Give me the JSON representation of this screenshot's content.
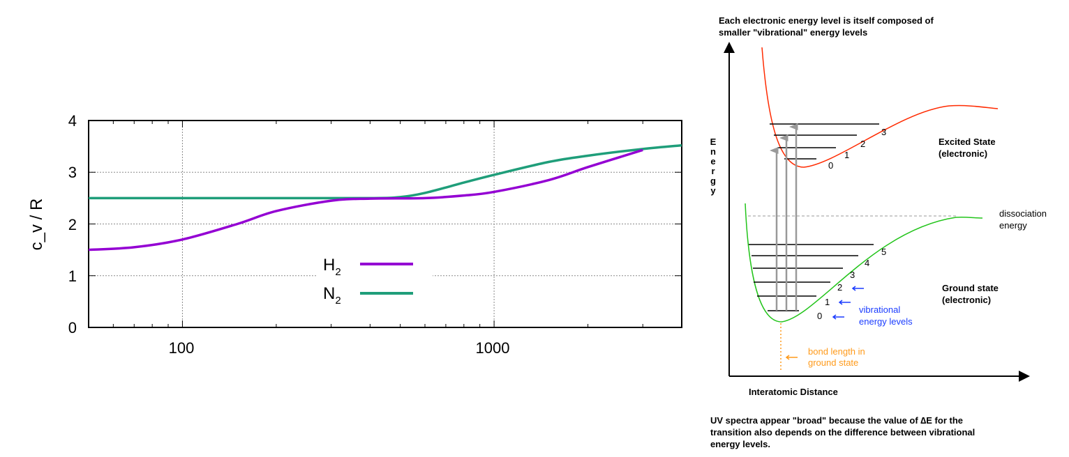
{
  "chart_data": {
    "type": "line",
    "title": "",
    "xlabel": "",
    "ylabel": "c_v / R",
    "ylabel_main": "c",
    "ylabel_sub": "V",
    "ylabel_rest": " / R",
    "xscale": "log",
    "xlim": [
      50,
      4000
    ],
    "ylim": [
      0,
      4
    ],
    "xticks": [
      "100",
      "1000"
    ],
    "yticks": [
      "0",
      "1",
      "2",
      "3",
      "4"
    ],
    "grid": true,
    "legend_position": "center",
    "series": [
      {
        "name": "H2",
        "label_main": "H",
        "label_sub": "2",
        "color": "#9400d3",
        "x": [
          50,
          70,
          100,
          150,
          200,
          300,
          400,
          600,
          800,
          1000,
          1500,
          2000,
          3000
        ],
        "y": [
          1.5,
          1.55,
          1.7,
          2.0,
          2.25,
          2.45,
          2.49,
          2.5,
          2.55,
          2.62,
          2.85,
          3.1,
          3.43
        ]
      },
      {
        "name": "N2",
        "label_main": "N",
        "label_sub": "2",
        "color": "#1f9e7a",
        "x": [
          50,
          100,
          200,
          400,
          500,
          600,
          800,
          1000,
          1500,
          2000,
          3000,
          4000
        ],
        "y": [
          2.5,
          2.5,
          2.5,
          2.5,
          2.52,
          2.6,
          2.8,
          2.95,
          3.2,
          3.32,
          3.45,
          3.52
        ]
      }
    ]
  },
  "diagram": {
    "title_line1": "Each electronic energy level is itself composed of",
    "title_line2": "smaller \"vibrational\" energy levels",
    "y_axis_label": [
      "E",
      "n",
      "e",
      "r",
      "g",
      "y"
    ],
    "x_axis_label": "Interatomic Distance",
    "excited_state": {
      "line1": "Excited State",
      "line2": "(electronic)",
      "color": "#ff2a00",
      "levels": [
        "0",
        "1",
        "2",
        "3"
      ]
    },
    "ground_state": {
      "line1": "Ground state",
      "line2": "(electronic)",
      "color": "#22c41a",
      "levels": [
        "0",
        "1",
        "2",
        "3",
        "4",
        "5"
      ]
    },
    "dissociation": {
      "line1": "dissociation",
      "line2": "energy"
    },
    "vibrational_note": {
      "line1": "vibrational",
      "line2": "energy levels",
      "color": "#1a3cff"
    },
    "bond_length_note": {
      "line1": "bond length in",
      "line2": "ground state",
      "color": "#ff9a1a"
    },
    "caption_line1": "UV spectra appear \"broad\" because the value of  ∆E for the",
    "caption_line2": "transition also depends on the difference between vibrational",
    "caption_line3": "energy levels."
  }
}
